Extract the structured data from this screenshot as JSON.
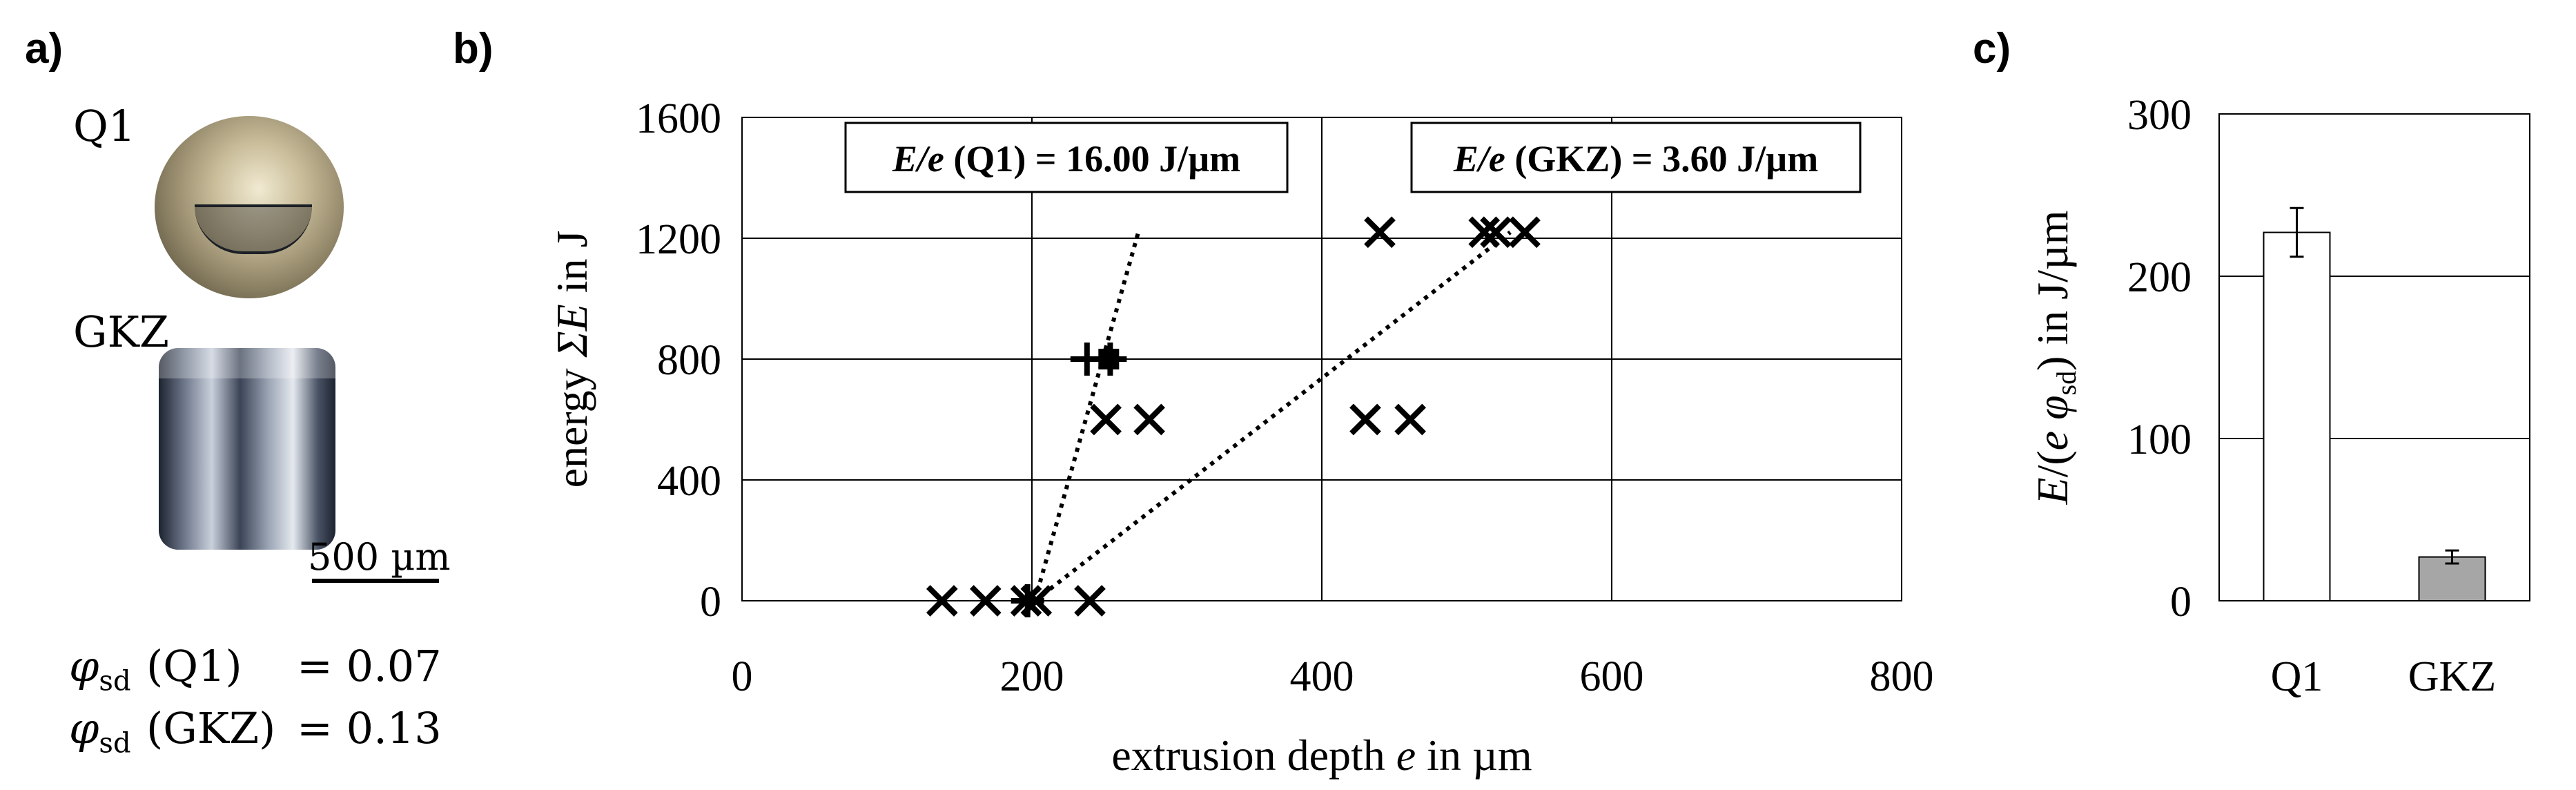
{
  "panel_a": {
    "letter": "a)",
    "q1_label": "Q1",
    "gkz_label": "GKZ",
    "scale_bar": "500 µm",
    "phi_q1_sample": "(Q1)",
    "phi_q1_value": "= 0.07",
    "phi_gkz_sample": "(GKZ)",
    "phi_gkz_value": "= 0.13"
  },
  "panel_b": {
    "letter": "b)"
  },
  "panel_c": {
    "letter": "c)"
  },
  "chart_data": [
    {
      "type": "scatter",
      "panel": "b",
      "xlabel": "extrusion depth e in µm",
      "ylabel": "energy ΣE in J",
      "xlim": [
        0,
        800
      ],
      "ylim": [
        0,
        1600
      ],
      "xticks": [
        0,
        200,
        400,
        600,
        800
      ],
      "yticks": [
        0,
        400,
        800,
        1200,
        1600
      ],
      "grid": true,
      "series": [
        {
          "marker": "x",
          "points": [
            [
              138,
              0
            ],
            [
              168,
              0
            ],
            [
              196,
              0
            ],
            [
              203,
              0
            ],
            [
              240,
              0
            ],
            [
              251,
              600
            ],
            [
              281,
              600
            ],
            [
              440,
              1220
            ],
            [
              512,
              1220
            ],
            [
              520,
              1220
            ],
            [
              540,
              1220
            ],
            [
              430,
              600
            ],
            [
              461,
              600
            ]
          ]
        },
        {
          "marker": "plus",
          "points": [
            [
              197,
              0
            ],
            [
              238,
              800
            ],
            [
              254,
              800
            ]
          ]
        },
        {
          "marker": "square",
          "points": [
            [
              253,
              800
            ]
          ]
        }
      ],
      "lines": [
        {
          "style": "dotted",
          "from": [
            202,
            0
          ],
          "to": [
            274,
            1230
          ]
        },
        {
          "style": "dotted",
          "from": [
            202,
            0
          ],
          "to": [
            530,
            1220
          ]
        }
      ],
      "annotations": [
        {
          "label_italic": "E/e",
          "label_rest": " (Q1) = 16.00 J/µm"
        },
        {
          "label_italic": "E/e",
          "label_rest": " (GKZ) = 3.60 J/µm"
        }
      ]
    },
    {
      "type": "bar",
      "panel": "c",
      "categories": [
        "Q1",
        "GKZ"
      ],
      "values": [
        227,
        27
      ],
      "errors": [
        15,
        4
      ],
      "colors": [
        "#ffffff",
        "#a6a6a6"
      ],
      "ylabel": "E/(e φsd) in J/µm",
      "ylim": [
        0,
        300
      ],
      "yticks": [
        0,
        100,
        200,
        300
      ],
      "grid": true
    }
  ]
}
